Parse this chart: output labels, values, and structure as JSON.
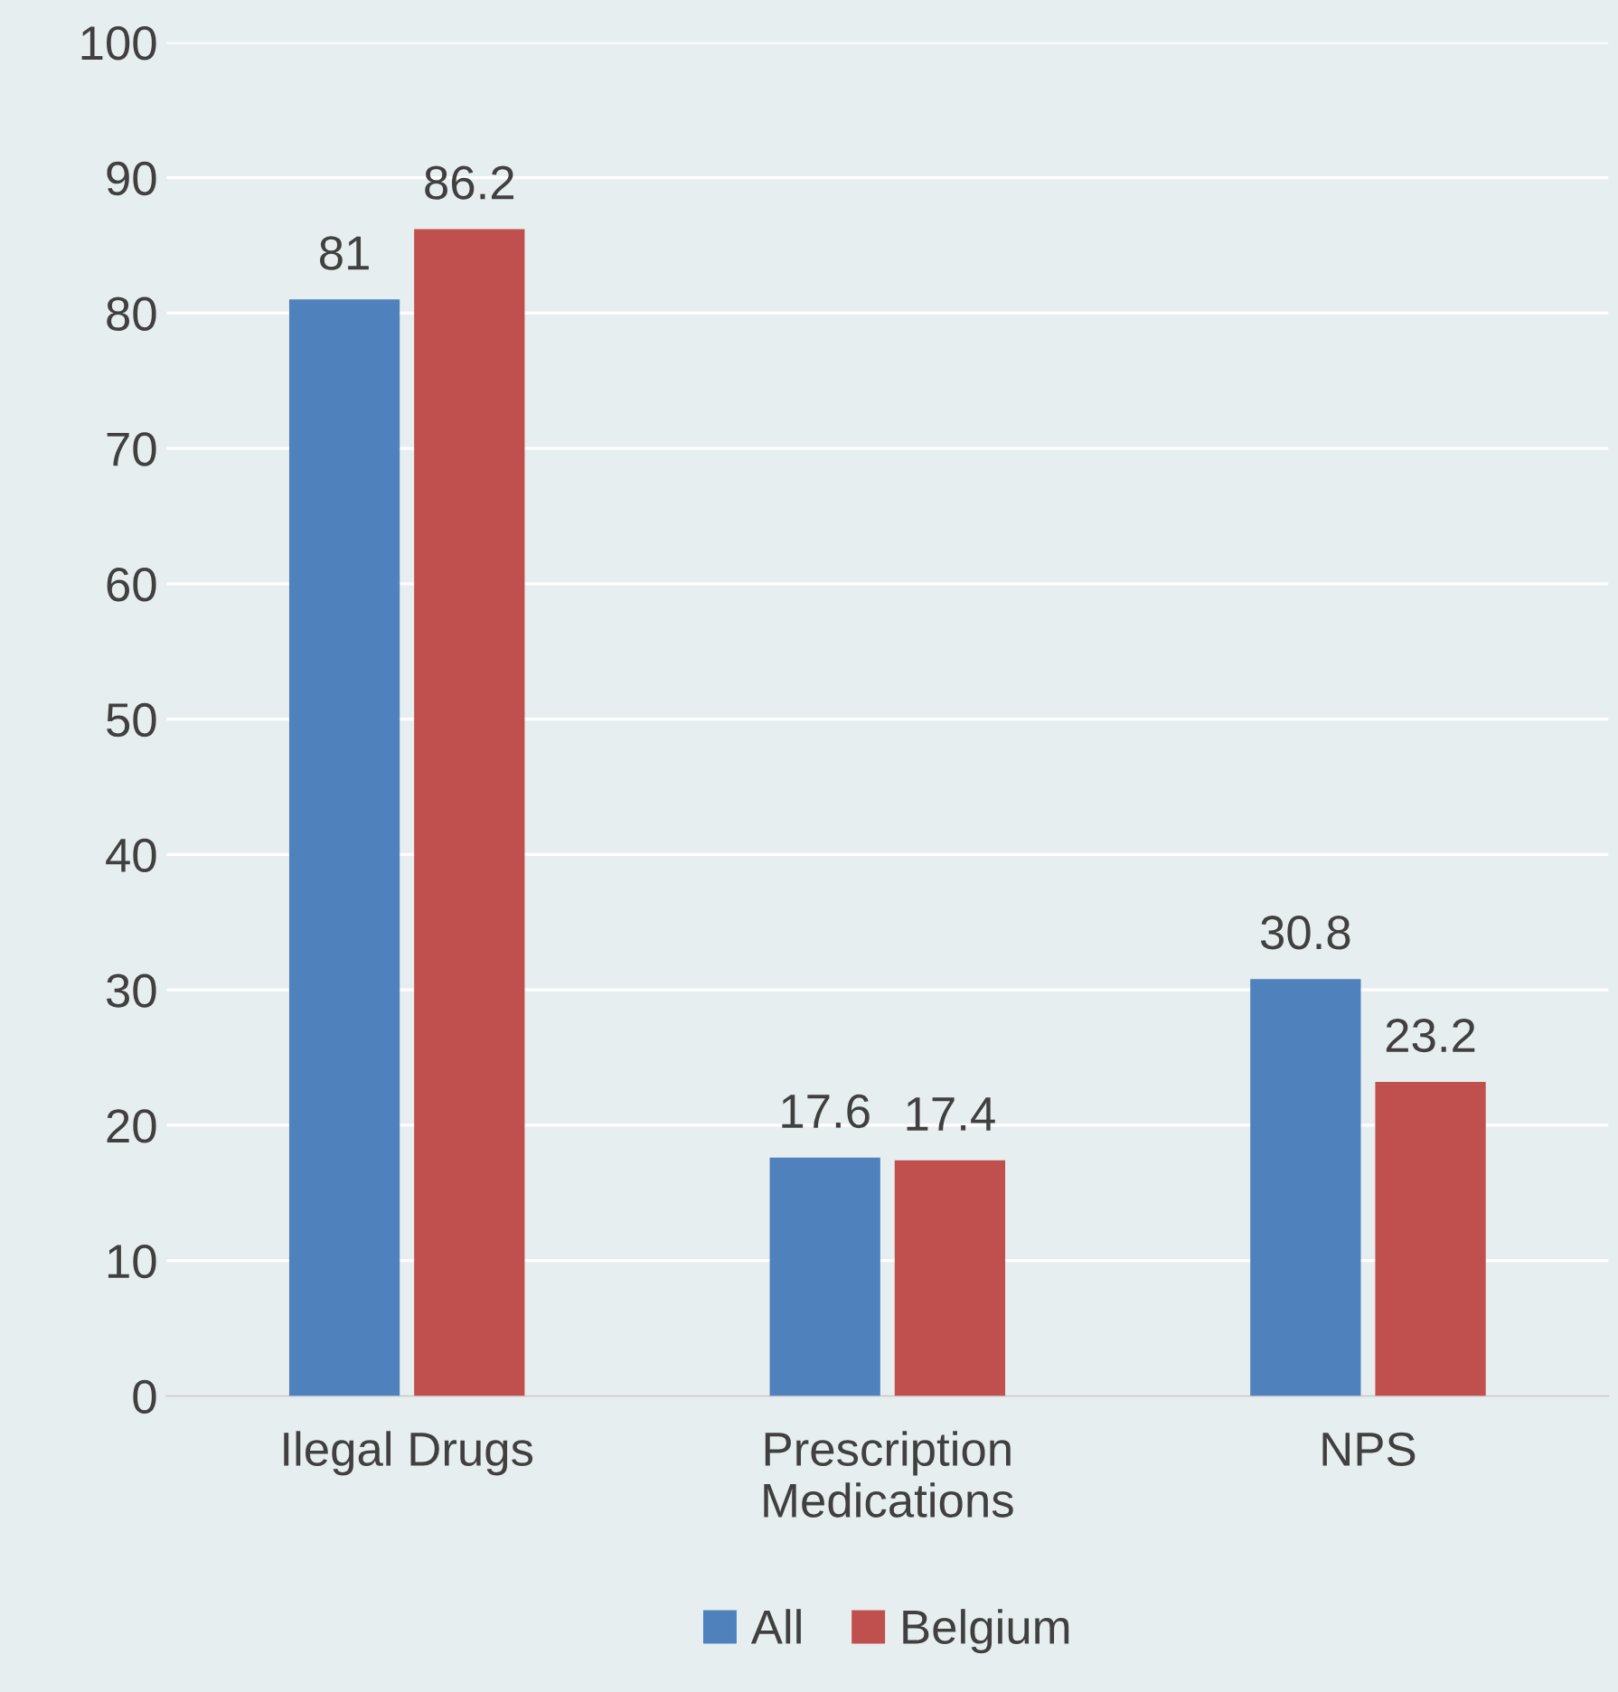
{
  "chart_data": {
    "type": "bar",
    "categories": [
      "Ilegal Drugs",
      "Prescription\nMedications",
      "NPS"
    ],
    "series": [
      {
        "name": "All",
        "color": "#4f81bd",
        "values": [
          81,
          17.6,
          30.8
        ]
      },
      {
        "name": "Belgium",
        "color": "#c0504d",
        "values": [
          86.2,
          17.4,
          23.2
        ]
      }
    ],
    "ylim": [
      0,
      100
    ],
    "yticks": [
      0,
      10,
      20,
      30,
      40,
      50,
      60,
      70,
      80,
      90,
      100
    ],
    "grid": "y",
    "legend": "bottom",
    "data_labels": true
  }
}
